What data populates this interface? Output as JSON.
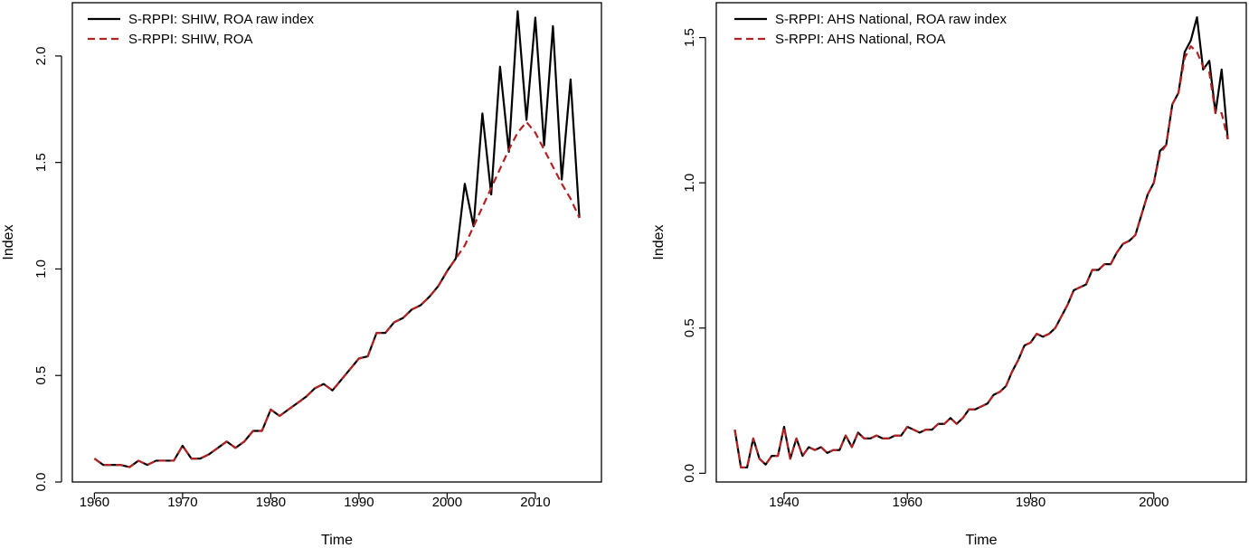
{
  "colors": {
    "raw": "#000000",
    "roa": "#b22222",
    "frame": "#000000",
    "background": "#ffffff"
  },
  "chart_data": [
    {
      "type": "line",
      "xlabel": "Time",
      "ylabel": "Index",
      "xlim": [
        1957.5,
        2017.5
      ],
      "ylim": [
        0.0,
        2.25
      ],
      "x_ticks": [
        1960,
        1970,
        1980,
        1990,
        2000,
        2010
      ],
      "y_ticks": [
        "0.0",
        "0.5",
        "1.0",
        "1.5",
        "2.0"
      ],
      "legend_position": "top-left",
      "series": [
        {
          "name": "S-RPPI: SHIW, ROA raw index",
          "style": "solid",
          "color": "#000000",
          "x": [
            1960,
            1961,
            1962,
            1963,
            1964,
            1965,
            1966,
            1967,
            1968,
            1969,
            1970,
            1971,
            1972,
            1973,
            1974,
            1975,
            1976,
            1977,
            1978,
            1979,
            1980,
            1981,
            1982,
            1983,
            1984,
            1985,
            1986,
            1987,
            1988,
            1989,
            1990,
            1991,
            1992,
            1993,
            1994,
            1995,
            1996,
            1997,
            1998,
            1999,
            2000,
            2001,
            2002,
            2003,
            2004,
            2005,
            2006,
            2007,
            2008,
            2009,
            2010,
            2011,
            2012,
            2013,
            2014,
            2015
          ],
          "y": [
            0.11,
            0.08,
            0.08,
            0.08,
            0.07,
            0.1,
            0.08,
            0.1,
            0.1,
            0.1,
            0.17,
            0.11,
            0.11,
            0.13,
            0.16,
            0.19,
            0.16,
            0.19,
            0.24,
            0.24,
            0.34,
            0.31,
            0.34,
            0.37,
            0.4,
            0.44,
            0.46,
            0.43,
            0.48,
            0.53,
            0.58,
            0.59,
            0.7,
            0.7,
            0.75,
            0.77,
            0.81,
            0.83,
            0.87,
            0.92,
            0.99,
            1.05,
            1.4,
            1.2,
            1.73,
            1.35,
            1.95,
            1.55,
            2.21,
            1.7,
            2.18,
            1.58,
            2.14,
            1.42,
            1.89,
            1.24
          ]
        },
        {
          "name": "S-RPPI: SHIW, ROA",
          "style": "dashed",
          "color": "#b22222",
          "x": [
            1960,
            1961,
            1962,
            1963,
            1964,
            1965,
            1966,
            1967,
            1968,
            1969,
            1970,
            1971,
            1972,
            1973,
            1974,
            1975,
            1976,
            1977,
            1978,
            1979,
            1980,
            1981,
            1982,
            1983,
            1984,
            1985,
            1986,
            1987,
            1988,
            1989,
            1990,
            1991,
            1992,
            1993,
            1994,
            1995,
            1996,
            1997,
            1998,
            1999,
            2000,
            2001,
            2002,
            2003,
            2004,
            2005,
            2006,
            2007,
            2008,
            2009,
            2010,
            2011,
            2012,
            2013,
            2014,
            2015
          ],
          "y": [
            0.11,
            0.08,
            0.08,
            0.08,
            0.07,
            0.1,
            0.08,
            0.1,
            0.1,
            0.1,
            0.17,
            0.11,
            0.11,
            0.13,
            0.16,
            0.19,
            0.16,
            0.19,
            0.24,
            0.24,
            0.34,
            0.31,
            0.34,
            0.37,
            0.4,
            0.44,
            0.46,
            0.43,
            0.48,
            0.53,
            0.58,
            0.59,
            0.7,
            0.7,
            0.75,
            0.77,
            0.81,
            0.83,
            0.87,
            0.92,
            0.99,
            1.05,
            1.11,
            1.2,
            1.29,
            1.38,
            1.47,
            1.56,
            1.64,
            1.69,
            1.64,
            1.56,
            1.48,
            1.4,
            1.33,
            1.24
          ]
        }
      ]
    },
    {
      "type": "line",
      "xlabel": "Time",
      "ylabel": "Index",
      "xlim": [
        1929,
        2015
      ],
      "ylim": [
        -0.03,
        1.62
      ],
      "x_ticks": [
        1940,
        1960,
        1980,
        2000
      ],
      "y_ticks": [
        "0.0",
        "0.5",
        "1.0",
        "1.5"
      ],
      "legend_position": "top-left",
      "series": [
        {
          "name": "S-RPPI: AHS National, ROA raw index",
          "style": "solid",
          "color": "#000000",
          "x": [
            1932,
            1933,
            1934,
            1935,
            1936,
            1937,
            1938,
            1939,
            1940,
            1941,
            1942,
            1943,
            1944,
            1945,
            1946,
            1947,
            1948,
            1949,
            1950,
            1951,
            1952,
            1953,
            1954,
            1955,
            1956,
            1957,
            1958,
            1959,
            1960,
            1961,
            1962,
            1963,
            1964,
            1965,
            1966,
            1967,
            1968,
            1969,
            1970,
            1971,
            1972,
            1973,
            1974,
            1975,
            1976,
            1977,
            1978,
            1979,
            1980,
            1981,
            1982,
            1983,
            1984,
            1985,
            1986,
            1987,
            1988,
            1989,
            1990,
            1991,
            1992,
            1993,
            1994,
            1995,
            1996,
            1997,
            1998,
            1999,
            2000,
            2001,
            2002,
            2003,
            2004,
            2005,
            2006,
            2007,
            2008,
            2009,
            2010,
            2011,
            2012
          ],
          "y": [
            0.15,
            0.02,
            0.02,
            0.12,
            0.05,
            0.03,
            0.06,
            0.06,
            0.16,
            0.05,
            0.12,
            0.06,
            0.09,
            0.08,
            0.09,
            0.07,
            0.08,
            0.08,
            0.13,
            0.09,
            0.14,
            0.12,
            0.12,
            0.13,
            0.12,
            0.12,
            0.13,
            0.13,
            0.16,
            0.15,
            0.14,
            0.15,
            0.15,
            0.17,
            0.17,
            0.19,
            0.17,
            0.19,
            0.22,
            0.22,
            0.23,
            0.24,
            0.27,
            0.28,
            0.3,
            0.35,
            0.39,
            0.44,
            0.45,
            0.48,
            0.47,
            0.48,
            0.5,
            0.54,
            0.58,
            0.63,
            0.64,
            0.65,
            0.7,
            0.7,
            0.72,
            0.72,
            0.76,
            0.79,
            0.8,
            0.82,
            0.89,
            0.96,
            1.0,
            1.11,
            1.13,
            1.27,
            1.31,
            1.45,
            1.49,
            1.57,
            1.39,
            1.42,
            1.24,
            1.39,
            1.15
          ]
        },
        {
          "name": "S-RPPI: AHS National, ROA",
          "style": "dashed",
          "color": "#b22222",
          "x": [
            1932,
            1933,
            1934,
            1935,
            1936,
            1937,
            1938,
            1939,
            1940,
            1941,
            1942,
            1943,
            1944,
            1945,
            1946,
            1947,
            1948,
            1949,
            1950,
            1951,
            1952,
            1953,
            1954,
            1955,
            1956,
            1957,
            1958,
            1959,
            1960,
            1961,
            1962,
            1963,
            1964,
            1965,
            1966,
            1967,
            1968,
            1969,
            1970,
            1971,
            1972,
            1973,
            1974,
            1975,
            1976,
            1977,
            1978,
            1979,
            1980,
            1981,
            1982,
            1983,
            1984,
            1985,
            1986,
            1987,
            1988,
            1989,
            1990,
            1991,
            1992,
            1993,
            1994,
            1995,
            1996,
            1997,
            1998,
            1999,
            2000,
            2001,
            2002,
            2003,
            2004,
            2005,
            2006,
            2007,
            2008,
            2009,
            2010,
            2011,
            2012
          ],
          "y": [
            0.15,
            0.02,
            0.02,
            0.12,
            0.05,
            0.03,
            0.06,
            0.06,
            0.16,
            0.05,
            0.12,
            0.06,
            0.09,
            0.08,
            0.09,
            0.07,
            0.08,
            0.08,
            0.13,
            0.09,
            0.14,
            0.12,
            0.12,
            0.13,
            0.12,
            0.12,
            0.13,
            0.13,
            0.16,
            0.15,
            0.14,
            0.15,
            0.15,
            0.17,
            0.17,
            0.19,
            0.17,
            0.19,
            0.22,
            0.22,
            0.23,
            0.24,
            0.27,
            0.28,
            0.3,
            0.35,
            0.39,
            0.44,
            0.45,
            0.48,
            0.47,
            0.48,
            0.5,
            0.54,
            0.58,
            0.63,
            0.64,
            0.65,
            0.7,
            0.7,
            0.72,
            0.72,
            0.76,
            0.79,
            0.8,
            0.82,
            0.89,
            0.96,
            1.0,
            1.1,
            1.13,
            1.27,
            1.31,
            1.43,
            1.47,
            1.45,
            1.4,
            1.38,
            1.24,
            1.24,
            1.15
          ]
        }
      ]
    }
  ]
}
